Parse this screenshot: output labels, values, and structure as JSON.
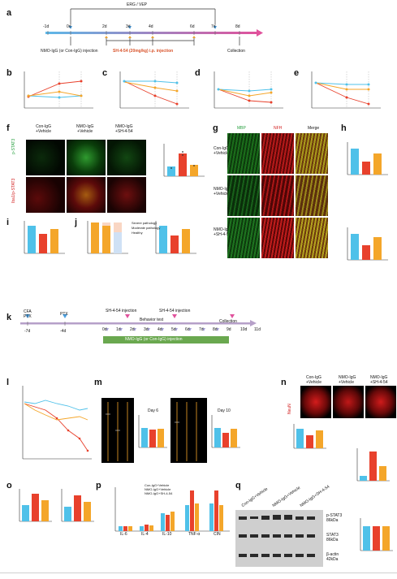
{
  "panels": {
    "a": {
      "label": "a",
      "erg_vep": "ERG / VEP",
      "days": [
        "-1d",
        "0d",
        "2d",
        "3d",
        "4d",
        "6d",
        "7d",
        "8d"
      ],
      "injection": "NMO-IgG (or Con-IgG) injection",
      "drug": "SH-4-54 (20mg/kg) i.p. injection",
      "collection": "Collection"
    },
    "b": {
      "label": "b",
      "ylabel": "Latency to P1 (ms)",
      "xlabel": "Days after injection"
    },
    "c": {
      "label": "c",
      "ylabel": "Amplitude of P1 (μV)",
      "xlabel": "Days after injection"
    },
    "d": {
      "label": "d",
      "ylabel": "Wave (μV)",
      "xlabel": "Days after injection"
    },
    "e": {
      "label": "e",
      "ylabel": "Wave (μV)",
      "xlabel": "Days after injection"
    },
    "legend": [
      "Con-IgG+Vehicle",
      "NMO-IgG+Vehicle",
      "NMO-IgG+SH-4-54"
    ],
    "f": {
      "label": "f",
      "cols": [
        "Con-IgG\n+Vehicle",
        "NMO-IgG\n+Vehicle",
        "NMO-IgG\n+SH-4-54"
      ],
      "row1": "p-STAT3",
      "row2": "Iba1/p-STAT3",
      "ylabel": "Iba1+ cells per mm²"
    },
    "g": {
      "label": "g",
      "cols": [
        "MBP",
        "NFH",
        "Merge"
      ],
      "rows": [
        "Con-IgG\n+Vehicle",
        "NMO-IgG\n+Vehicle",
        "NMO-IgG\n+SH-4-54"
      ]
    },
    "h": {
      "label": "h",
      "ylabel1": "Relative MBP intensity",
      "ylabel2": "Relative NFH intensity"
    },
    "i": {
      "label": "i",
      "ylabel": "RGC Density (RBPMS+ cells/mm²)"
    },
    "j": {
      "label": "j",
      "legend": [
        "Severe pathology",
        "Moderate pathology",
        "Healthy"
      ],
      "ylabel1": "Optic nerve pathology (%)",
      "ylabel2": "Axon density (axons/μm²)"
    },
    "k": {
      "label": "k",
      "cfa": "CFA",
      "ptx1": "PTX",
      "ptx2": "PTX",
      "d_neg7": "-7d",
      "d_neg4": "-4d",
      "ticks": [
        "0d",
        "1d",
        "2d",
        "3d",
        "4d",
        "5d",
        "6d",
        "7d",
        "8d",
        "9d",
        "10d",
        "11d"
      ],
      "sh1": "SH-4-54 injection",
      "sh2": "SH-4-54 injection",
      "behavior": "Behavior test",
      "collection": "Collection",
      "bar": "NMO-IgG (or Con-IgG) injection"
    },
    "l": {
      "label": "l",
      "ylabel": "Latency to fall (seconds)",
      "xlabel": "Days"
    },
    "m": {
      "label": "m",
      "day6": "Day 6",
      "day10": "Day 10",
      "ylabel": "Stride length (cm)"
    },
    "n": {
      "label": "n",
      "cols": [
        "Con-IgG\n+Vehicle",
        "NMO-IgG\n+Vehicle",
        "NMO-IgG\n+SH-4-54"
      ],
      "side": "NeuN",
      "ylabel1": "NeuN+ cells per mm²",
      "ylabel2": "p-STAT3/STAT3"
    },
    "o": {
      "label": "o",
      "ylabel1": "Iba1+ cells per mm²",
      "ylabel2": "Iba1+/p-STAT3+ (%)"
    },
    "p": {
      "label": "p",
      "ylabel": "Inflammatory cytokines (pg/mg)",
      "xcats": [
        "IL-6",
        "IL-4",
        "IL-10",
        "TNF-α",
        "CIN"
      ]
    },
    "q": {
      "label": "q",
      "groups": [
        "Con-IgG+Vehicle",
        "NMO-IgG+Vehicle",
        "NMO-IgG+SH-4-54"
      ],
      "bands": [
        "p-STAT3\n86kDa",
        "STAT3\n86kDa",
        "β-actin\n42kDa"
      ],
      "ylabel1": "p-STAT3/STAT3",
      "ylabel2": "STAT3/β-actin"
    }
  },
  "colors": {
    "con": "#4fc1e9",
    "nmo": "#e8412c",
    "sh": "#f4a62a",
    "arrow": "#e0529c",
    "green": "#28a040",
    "red": "#d21e1e"
  }
}
